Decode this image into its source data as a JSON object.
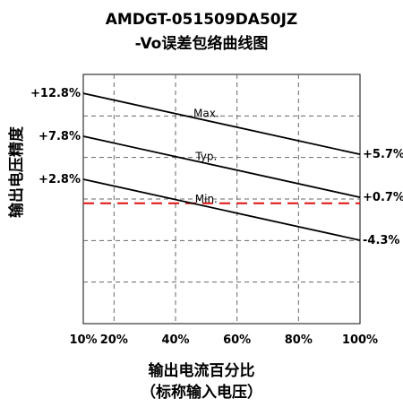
{
  "chart_data": {
    "type": "line",
    "title": "AMDGT-051509DA50JZ",
    "subtitle": "-Vo误差包络曲线图",
    "xlabel": "输出电流百分比",
    "xlabel_sub": "（标称输入电压）",
    "ylabel": "输出电压精度",
    "x_ticks": [
      "10%",
      "20%",
      "40%",
      "60%",
      "80%",
      "100%"
    ],
    "x_tick_values": [
      10,
      20,
      40,
      60,
      80,
      100
    ],
    "xlim": [
      10,
      100
    ],
    "ylim": [
      -14,
      15
    ],
    "grid": true,
    "colors": {
      "series": "#000000",
      "grid": "#666666",
      "zero_line": "#e01010"
    },
    "series": [
      {
        "name": "Max.",
        "x": [
          10,
          100
        ],
        "values": [
          12.8,
          5.7
        ],
        "start_label": "+12.8%",
        "end_label": "+5.7%",
        "name_at_x": 50
      },
      {
        "name": "Typ.",
        "x": [
          10,
          100
        ],
        "values": [
          7.8,
          0.7
        ],
        "start_label": "+7.8%",
        "end_label": "+0.7%",
        "name_at_x": 50
      },
      {
        "name": "Min.",
        "x": [
          10,
          100
        ],
        "values": [
          2.8,
          -4.3
        ],
        "start_label": "+2.8%",
        "end_label": "-4.3%",
        "name_at_x": 50
      }
    ],
    "reference_line": {
      "y": 0,
      "style": "dashed"
    }
  }
}
